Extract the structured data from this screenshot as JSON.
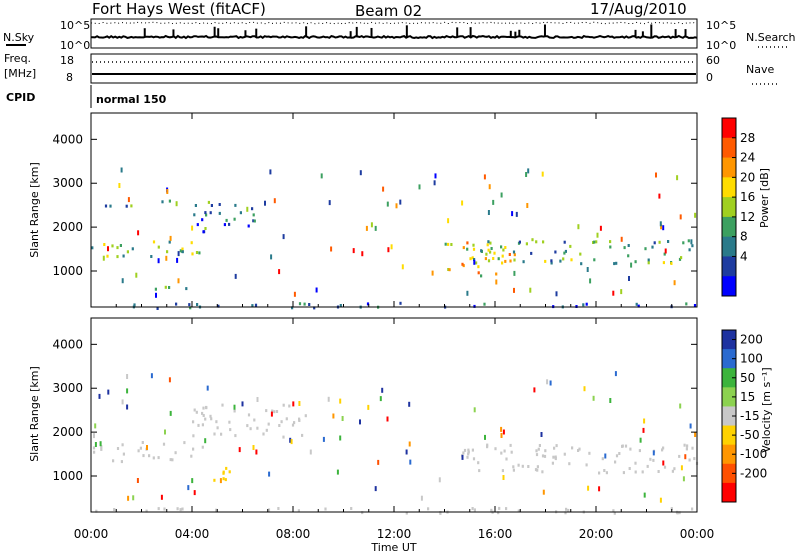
{
  "header": {
    "station": "Fort Hays West (fitACF)",
    "beam": "Beam 02",
    "date": "17/Aug/2010"
  },
  "top_panels": {
    "nsky_label": "N.Sky",
    "nsearch_label": "N.Search",
    "freq_label_1": "Freq.",
    "freq_label_2": "[MHz]",
    "nave_label": "Nave",
    "cpid_label": "CPID",
    "cpid_value": "normal 150",
    "left_ticks_noise": [
      "10^5",
      "10^0"
    ],
    "right_ticks_noise": [
      "10^5",
      "10^0"
    ],
    "left_ticks_freq": [
      "18",
      "8"
    ],
    "right_ticks_nave": [
      "60",
      "0"
    ]
  },
  "x_axis": {
    "label": "Time UT",
    "ticks": [
      "00:00",
      "04:00",
      "08:00",
      "12:00",
      "16:00",
      "20:00",
      "00:00"
    ]
  },
  "power_panel": {
    "ylabel": "Slant Range [km]",
    "y_ticks": [
      "4000",
      "3000",
      "2000",
      "1000"
    ],
    "cbar_label": "Power [dB]",
    "cbar_ticks": [
      "28",
      "24",
      "20",
      "16",
      "12",
      "8",
      "4"
    ],
    "colors": [
      "#ff0000",
      "#ff5a00",
      "#ff9600",
      "#ffdc00",
      "#a0d020",
      "#3ca060",
      "#2a7a8a",
      "#1e3ca0",
      "#0000ff"
    ]
  },
  "velocity_panel": {
    "ylabel": "Slant Range [km]",
    "y_ticks": [
      "4000",
      "3000",
      "2000",
      "1000"
    ],
    "cbar_label": "Velocity [m s⁻¹]",
    "cbar_ticks": [
      "200",
      "100",
      "50",
      "15",
      "-15",
      "-50",
      "-100",
      "-200"
    ],
    "colors": [
      "#1e32a0",
      "#2a6ad0",
      "#3cb43c",
      "#8cd250",
      "#c8c8c8",
      "#ffd200",
      "#ff9600",
      "#ff5000",
      "#ff0000"
    ]
  },
  "chart_data": [
    {
      "type": "heatmap",
      "title": "Power [dB]",
      "xlabel": "Time UT",
      "ylabel": "Slant Range [km]",
      "x_range": [
        "00:00",
        "24:00"
      ],
      "y_range": [
        180,
        4600
      ],
      "colorbar": {
        "label": "Power [dB]",
        "range": [
          0,
          32
        ]
      },
      "regions": [
        {
          "t_start": 0.0,
          "t_end": 4.5,
          "range_low": 1350,
          "range_high": 1800,
          "level": 14
        },
        {
          "t_start": 0.5,
          "t_end": 4.0,
          "range_low": 2500,
          "range_high": 2650,
          "level": 8
        },
        {
          "t_start": 4.0,
          "t_end": 6.5,
          "range_low": 1900,
          "range_high": 2600,
          "level": 8
        },
        {
          "t_start": 1.5,
          "t_end": 4.0,
          "range_low": 600,
          "range_high": 700,
          "level": 8
        },
        {
          "t_start": 14.0,
          "t_end": 17.0,
          "range_low": 900,
          "range_high": 1700,
          "level": 20
        },
        {
          "t_start": 15.0,
          "t_end": 24.0,
          "range_low": 1200,
          "range_high": 1750,
          "level": 12
        },
        {
          "t_start": 0.0,
          "t_end": 24.0,
          "range_low": 180,
          "range_high": 300,
          "level": 6
        }
      ]
    },
    {
      "type": "heatmap",
      "title": "Velocity [m s-1]",
      "xlabel": "Time UT",
      "ylabel": "Slant Range [km]",
      "x_range": [
        "00:00",
        "24:00"
      ],
      "y_range": [
        180,
        4600
      ],
      "colorbar": {
        "label": "Velocity [m s-1]",
        "range": [
          -250,
          250
        ]
      },
      "regions": [
        {
          "t_start": 0.0,
          "t_end": 4.5,
          "range_low": 1350,
          "range_high": 1800,
          "level": 0
        },
        {
          "t_start": 4.5,
          "t_end": 5.8,
          "range_low": 900,
          "range_high": 1300,
          "level": -60
        },
        {
          "t_start": 4.0,
          "t_end": 8.5,
          "range_low": 1900,
          "range_high": 2700,
          "level": 0
        },
        {
          "t_start": 14.0,
          "t_end": 24.0,
          "range_low": 1100,
          "range_high": 1750,
          "level": 0
        },
        {
          "t_start": 0.0,
          "t_end": 24.0,
          "range_low": 180,
          "range_high": 300,
          "level": -20
        }
      ]
    }
  ]
}
